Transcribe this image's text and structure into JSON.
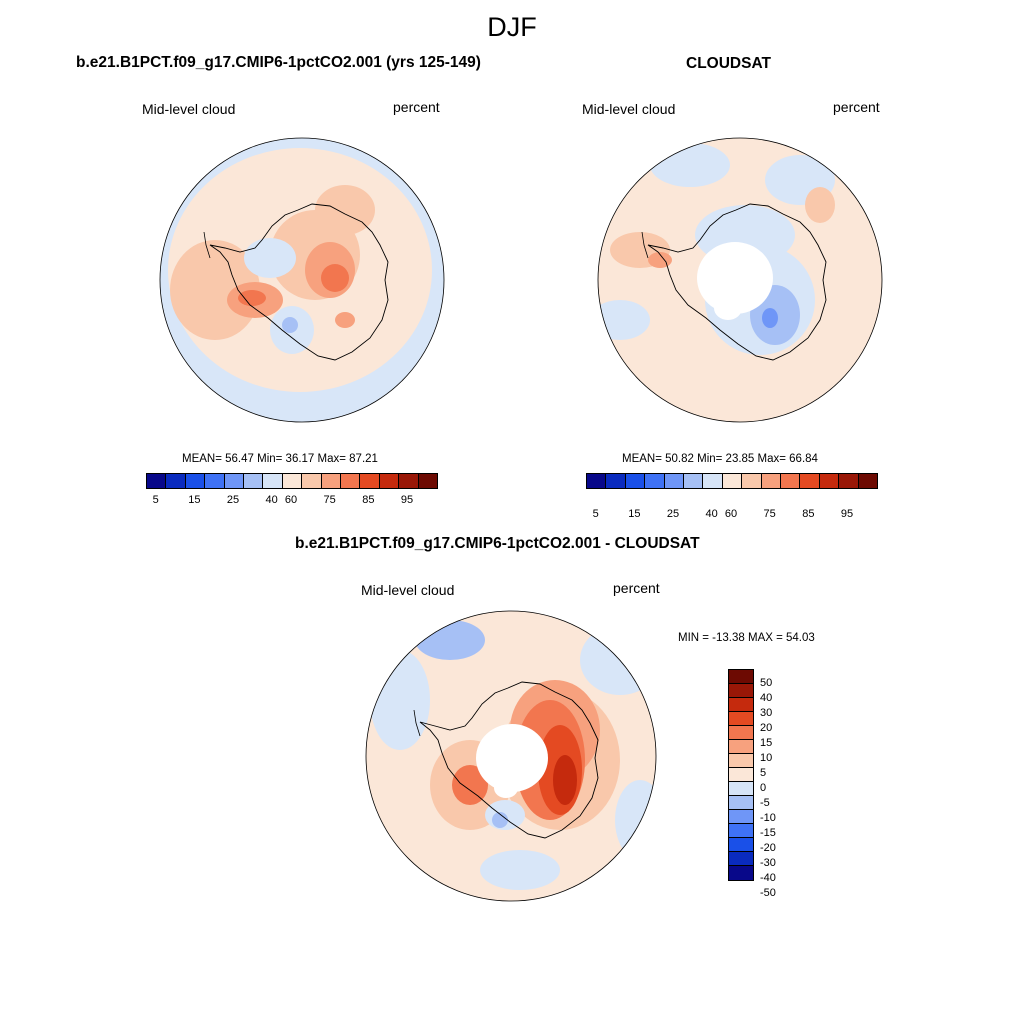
{
  "main_title": "DJF",
  "panels": [
    {
      "title": "b.e21.B1PCT.f09_g17.CMIP6-1pctCO2.001 (yrs 125-149)",
      "left_label": "Mid-level cloud",
      "right_label": "percent",
      "stats": "MEAN=  56.47  Min=  36.17  Max=  87.21",
      "colorbar_ticks": [
        "5",
        "15",
        "25",
        "40",
        "60",
        "75",
        "85",
        "95"
      ]
    },
    {
      "title": "CLOUDSAT",
      "left_label": "Mid-level cloud",
      "right_label": "percent",
      "stats": "MEAN=  50.82  Min=  23.85  Max=  66.84",
      "colorbar_ticks": [
        "5",
        "15",
        "25",
        "40",
        "60",
        "75",
        "85",
        "95"
      ]
    },
    {
      "title": "b.e21.B1PCT.f09_g17.CMIP6-1pctCO2.001 - CLOUDSAT",
      "left_label": "Mid-level cloud",
      "right_label": "percent",
      "stats": "MIN = -13.38 MAX =  54.03",
      "colorbar_labels": [
        "50",
        "40",
        "30",
        "20",
        "15",
        "10",
        "5",
        "0",
        "-5",
        "-10",
        "-15",
        "-20",
        "-30",
        "-40",
        "-50"
      ]
    }
  ],
  "colors": {
    "palette": [
      "#08088a",
      "#0a2bbf",
      "#1a50e8",
      "#3f72f5",
      "#6f96f7",
      "#a6c0f5",
      "#d6e4f7",
      "#fbe7d8",
      "#f9c8ab",
      "#f7a17e",
      "#f2764f",
      "#e44a22",
      "#c52a0d",
      "#991707",
      "#6d0a02"
    ],
    "ocean_light_blue": "#d8e6f8",
    "light_peach": "#fbe7d8"
  }
}
